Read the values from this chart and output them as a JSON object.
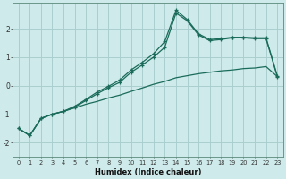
{
  "xlabel": "Humidex (Indice chaleur)",
  "xlim": [
    -0.5,
    23.5
  ],
  "ylim": [
    -2.5,
    2.9
  ],
  "xticks": [
    0,
    1,
    2,
    3,
    4,
    5,
    6,
    7,
    8,
    9,
    10,
    11,
    12,
    13,
    14,
    15,
    16,
    17,
    18,
    19,
    20,
    21,
    22,
    23
  ],
  "yticks": [
    -2,
    -1,
    0,
    1,
    2
  ],
  "background_color": "#ceeaea",
  "grid_color": "#aacece",
  "line_color": "#1a6b5a",
  "line1_x": [
    0,
    1,
    2,
    3,
    4,
    5,
    6,
    7,
    8,
    9,
    10,
    11,
    12,
    13,
    14,
    15,
    16,
    17,
    18,
    19,
    20,
    21,
    22,
    23
  ],
  "line1_y": [
    -1.5,
    -1.75,
    -1.15,
    -1.0,
    -0.9,
    -0.78,
    -0.65,
    -0.55,
    -0.43,
    -0.33,
    -0.2,
    -0.08,
    0.05,
    0.15,
    0.28,
    0.35,
    0.42,
    0.47,
    0.52,
    0.55,
    0.6,
    0.62,
    0.67,
    0.32
  ],
  "line2_x": [
    0,
    1,
    2,
    3,
    4,
    5,
    6,
    7,
    8,
    9,
    10,
    11,
    12,
    13,
    14,
    15,
    16,
    17,
    18,
    19,
    20,
    21,
    22,
    23
  ],
  "line2_y": [
    -1.5,
    -1.75,
    -1.15,
    -1.0,
    -0.9,
    -0.75,
    -0.52,
    -0.28,
    -0.07,
    0.12,
    0.47,
    0.73,
    1.0,
    1.35,
    2.55,
    2.28,
    1.78,
    1.58,
    1.62,
    1.68,
    1.68,
    1.65,
    1.65,
    0.32
  ],
  "line3_x": [
    0,
    1,
    2,
    3,
    4,
    5,
    6,
    7,
    8,
    9,
    10,
    11,
    12,
    13,
    14,
    15,
    16,
    17,
    18,
    19,
    20,
    21,
    22,
    23
  ],
  "line3_y": [
    -1.5,
    -1.75,
    -1.15,
    -1.0,
    -0.9,
    -0.72,
    -0.48,
    -0.22,
    -0.02,
    0.2,
    0.55,
    0.82,
    1.12,
    1.55,
    2.65,
    2.32,
    1.82,
    1.62,
    1.65,
    1.7,
    1.7,
    1.68,
    1.68,
    0.35
  ]
}
